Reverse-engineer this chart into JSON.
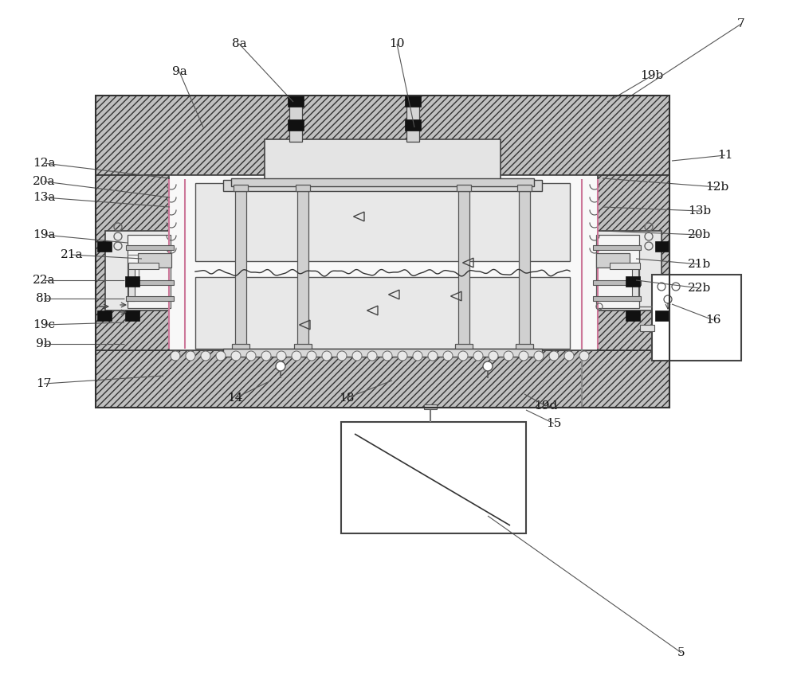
{
  "bg": "#ffffff",
  "labels": [
    [
      "7",
      930,
      30,
      780,
      128
    ],
    [
      "8a",
      300,
      55,
      368,
      128
    ],
    [
      "9a",
      225,
      90,
      255,
      160
    ],
    [
      "10",
      498,
      55,
      520,
      160
    ],
    [
      "11",
      910,
      195,
      843,
      202
    ],
    [
      "12a",
      55,
      205,
      213,
      224
    ],
    [
      "12b",
      900,
      235,
      756,
      224
    ],
    [
      "13a",
      55,
      248,
      213,
      260
    ],
    [
      "13b",
      878,
      265,
      756,
      260
    ],
    [
      "19b",
      818,
      95,
      762,
      128
    ],
    [
      "20a",
      55,
      228,
      213,
      248
    ],
    [
      "20b",
      878,
      295,
      756,
      290
    ],
    [
      "19a",
      55,
      295,
      160,
      305
    ],
    [
      "21a",
      90,
      320,
      178,
      325
    ],
    [
      "21b",
      878,
      332,
      798,
      325
    ],
    [
      "22a",
      55,
      352,
      156,
      352
    ],
    [
      "22b",
      878,
      362,
      798,
      352
    ],
    [
      "8b",
      55,
      375,
      156,
      375
    ],
    [
      "19c",
      55,
      408,
      156,
      405
    ],
    [
      "9b",
      55,
      432,
      156,
      432
    ],
    [
      "14",
      295,
      500,
      340,
      478
    ],
    [
      "18",
      435,
      500,
      492,
      478
    ],
    [
      "15",
      695,
      532,
      660,
      515
    ],
    [
      "19d",
      685,
      510,
      658,
      495
    ],
    [
      "16",
      895,
      402,
      843,
      382
    ],
    [
      "17",
      55,
      482,
      205,
      472
    ],
    [
      "5",
      855,
      820,
      612,
      648
    ]
  ]
}
